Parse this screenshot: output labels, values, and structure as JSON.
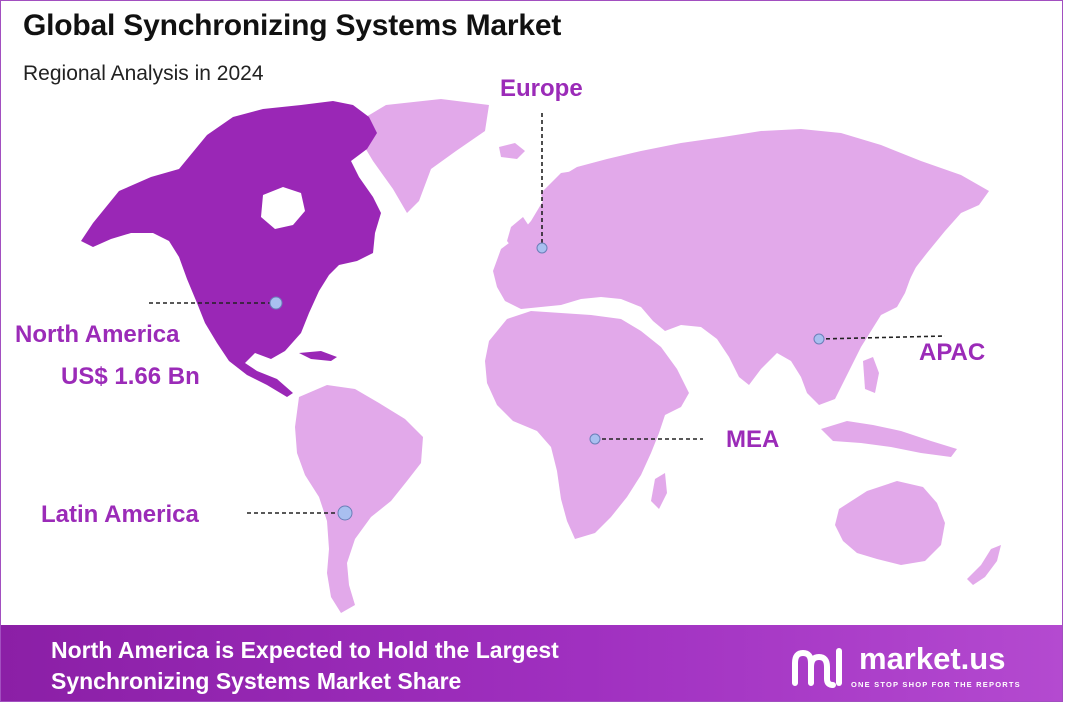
{
  "header": {
    "title": "Global Synchronizing Systems Market",
    "subtitle": "Regional Analysis in 2024"
  },
  "regions": [
    {
      "id": "north-america",
      "label": "North America",
      "value": "US$ 1.66 Bn",
      "highlighted": true
    },
    {
      "id": "europe",
      "label": "Europe"
    },
    {
      "id": "apac",
      "label": "APAC"
    },
    {
      "id": "mea",
      "label": "MEA"
    },
    {
      "id": "latin-america",
      "label": "Latin America"
    }
  ],
  "colors": {
    "highlight": "#9a27b6",
    "land": "#e2a9ea",
    "label": "#9b2bb8",
    "marker": "#a9bff0",
    "footer": "#9a2cb8"
  },
  "footer": {
    "line1": "North America is Expected to Hold the Largest",
    "line2": "Synchronizing Systems Market Share"
  },
  "brand": {
    "name": "market.us",
    "tagline": "ONE STOP SHOP FOR THE REPORTS",
    "icon": "market-us-logo-icon"
  }
}
